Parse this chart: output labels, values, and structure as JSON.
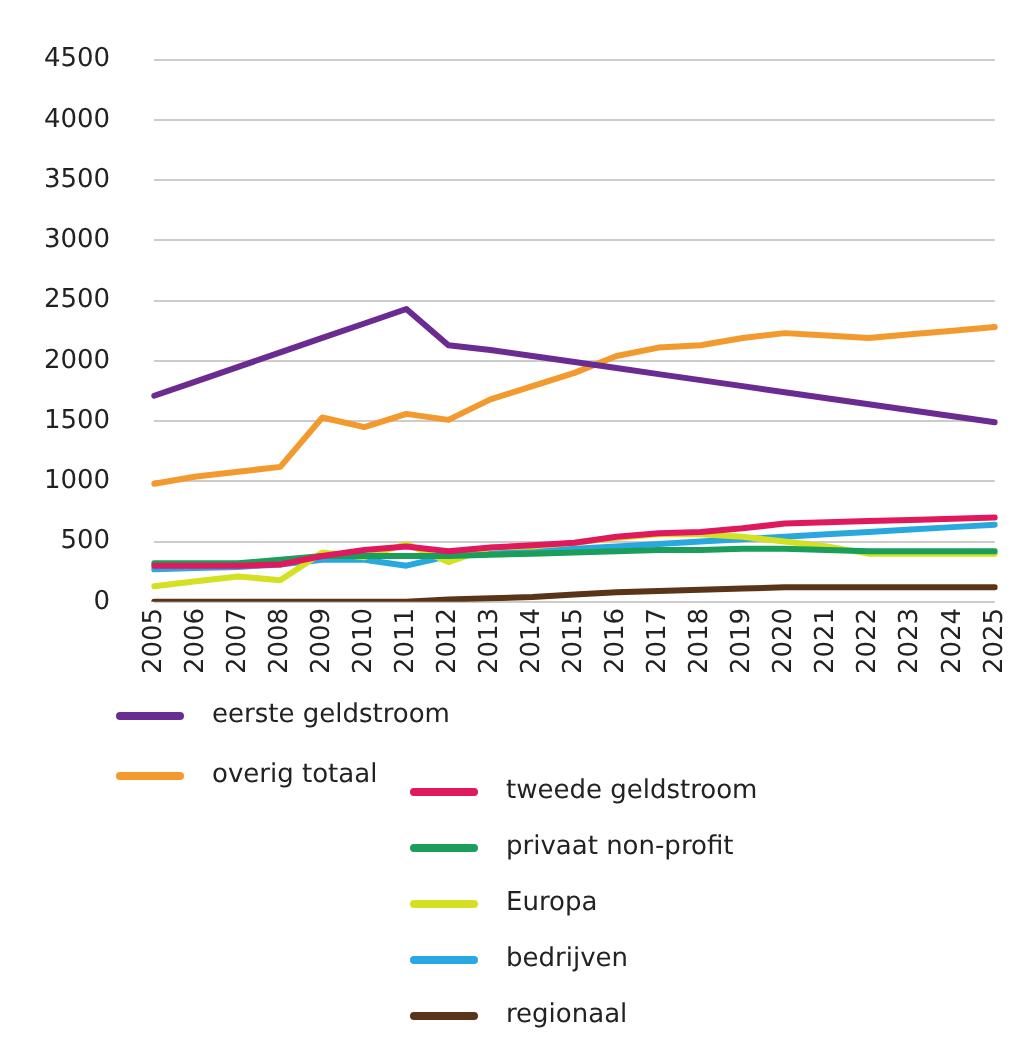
{
  "chart_data": {
    "type": "line",
    "categories": [
      "2005",
      "2006",
      "2007",
      "2008",
      "2009",
      "2010",
      "2011",
      "2012",
      "2013",
      "2014",
      "2015",
      "2016",
      "2017",
      "2018",
      "2019",
      "2020",
      "2021",
      "2022",
      "2023",
      "2024",
      "2025"
    ],
    "series": [
      {
        "name": "eerste geldstroom",
        "color": "#6a2c91",
        "values": [
          1710,
          1830,
          1950,
          2070,
          2190,
          2310,
          2430,
          2130,
          2090,
          2040,
          1990,
          1940,
          1890,
          1840,
          1790,
          1740,
          1690,
          1640,
          1590,
          1540,
          1490
        ]
      },
      {
        "name": "overig totaal",
        "color": "#f39a2e",
        "values": [
          980,
          1040,
          1080,
          1120,
          1530,
          1450,
          1560,
          1510,
          1680,
          1790,
          1900,
          2040,
          2110,
          2130,
          2190,
          2230,
          2210,
          2190,
          2220,
          2250,
          2280
        ]
      },
      {
        "name": "tweede geldstroom",
        "color": "#e0195e",
        "values": [
          300,
          300,
          300,
          310,
          380,
          430,
          460,
          420,
          450,
          470,
          490,
          540,
          570,
          580,
          610,
          650,
          660,
          670,
          680,
          690,
          700
        ]
      },
      {
        "name": "privaat non-profit",
        "color": "#1a9e5a",
        "values": [
          320,
          320,
          320,
          350,
          380,
          380,
          380,
          380,
          390,
          400,
          410,
          420,
          430,
          430,
          440,
          440,
          430,
          420,
          420,
          420,
          420
        ]
      },
      {
        "name": "Europa",
        "color": "#d4e021",
        "values": [
          130,
          170,
          210,
          180,
          410,
          370,
          480,
          330,
          450,
          460,
          490,
          530,
          560,
          560,
          540,
          500,
          460,
          400,
          400,
          400,
          400
        ]
      },
      {
        "name": "bedrijven",
        "color": "#29a8e0",
        "values": [
          270,
          280,
          290,
          310,
          350,
          350,
          300,
          380,
          400,
          420,
          440,
          460,
          480,
          500,
          520,
          540,
          560,
          580,
          600,
          620,
          640
        ]
      },
      {
        "name": "regionaal",
        "color": "#5a3418",
        "values": [
          0,
          0,
          0,
          0,
          0,
          0,
          0,
          20,
          30,
          40,
          60,
          80,
          90,
          100,
          110,
          120,
          120,
          120,
          120,
          120,
          120
        ]
      }
    ],
    "ylim": [
      0,
      4500
    ],
    "yticks": [
      0,
      500,
      1000,
      1500,
      2000,
      2500,
      3000,
      3500,
      4000,
      4500
    ],
    "grid": "y",
    "legend": "bottom",
    "marker": "none",
    "line_style": "solid"
  }
}
